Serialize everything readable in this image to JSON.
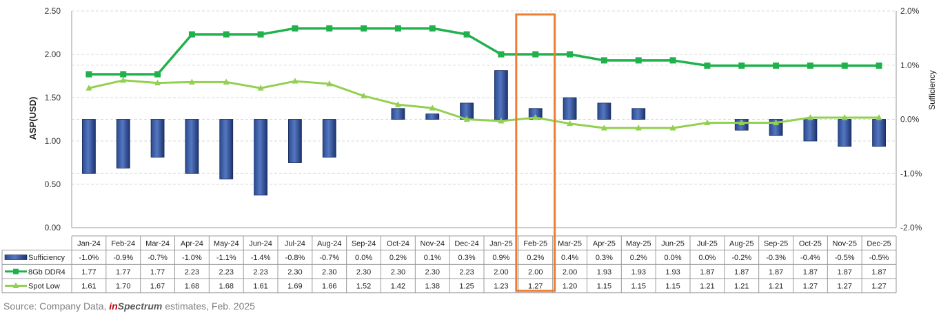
{
  "chart_data": {
    "type": "bar+line",
    "categories": [
      "Jan-24",
      "Feb-24",
      "Mar-24",
      "Apr-24",
      "May-24",
      "Jun-24",
      "Jul-24",
      "Aug-24",
      "Sep-24",
      "Oct-24",
      "Nov-24",
      "Dec-24",
      "Jan-25",
      "Feb-25",
      "Mar-25",
      "Apr-25",
      "May-25",
      "Jun-25",
      "Jul-25",
      "Aug-25",
      "Sep-25",
      "Oct-25",
      "Nov-25",
      "Dec-25"
    ],
    "ylabel": "ASP(USD)",
    "y2label": "Sufficiency",
    "ylim": [
      0,
      2.5
    ],
    "y_ticks": [
      "0.00",
      "0.50",
      "1.00",
      "1.50",
      "2.00",
      "2.50"
    ],
    "y2lim": [
      -2.0,
      2.0
    ],
    "y2_ticks": [
      "-2.0%",
      "-1.0%",
      "0.0%",
      "1.0%",
      "2.0%"
    ],
    "grid": true,
    "highlight_category": "Feb-25",
    "colors": {
      "bar": "#1f3a7a",
      "ddr4": "#1fb14c",
      "spot": "#92d050",
      "highlight": "#ed7d31"
    },
    "series": [
      {
        "name": "Sufficiency",
        "type": "bar",
        "axis": "right",
        "values": [
          -1.0,
          -0.9,
          -0.7,
          -1.0,
          -1.1,
          -1.4,
          -0.8,
          -0.7,
          0.0,
          0.2,
          0.1,
          0.3,
          0.9,
          0.2,
          0.4,
          0.3,
          0.2,
          0.0,
          0.0,
          -0.2,
          -0.3,
          -0.4,
          -0.5,
          -0.5
        ],
        "labels": [
          "-1.0%",
          "-0.9%",
          "-0.7%",
          "-1.0%",
          "-1.1%",
          "-1.4%",
          "-0.8%",
          "-0.7%",
          "0.0%",
          "0.2%",
          "0.1%",
          "0.3%",
          "0.9%",
          "0.2%",
          "0.4%",
          "0.3%",
          "0.2%",
          "0.0%",
          "0.0%",
          "-0.2%",
          "-0.3%",
          "-0.4%",
          "-0.5%",
          "-0.5%"
        ]
      },
      {
        "name": "8Gb DDR4",
        "type": "line",
        "axis": "left",
        "values": [
          1.77,
          1.77,
          1.77,
          2.23,
          2.23,
          2.23,
          2.3,
          2.3,
          2.3,
          2.3,
          2.3,
          2.23,
          2.0,
          2.0,
          2.0,
          1.93,
          1.93,
          1.93,
          1.87,
          1.87,
          1.87,
          1.87,
          1.87,
          1.87
        ],
        "labels": [
          "1.77",
          "1.77",
          "1.77",
          "2.23",
          "2.23",
          "2.23",
          "2.30",
          "2.30",
          "2.30",
          "2.30",
          "2.30",
          "2.23",
          "2.00",
          "2.00",
          "2.00",
          "1.93",
          "1.93",
          "1.93",
          "1.87",
          "1.87",
          "1.87",
          "1.87",
          "1.87",
          "1.87"
        ]
      },
      {
        "name": "Spot Low",
        "type": "line",
        "axis": "left",
        "values": [
          1.61,
          1.7,
          1.67,
          1.68,
          1.68,
          1.61,
          1.69,
          1.66,
          1.52,
          1.42,
          1.38,
          1.25,
          1.23,
          1.27,
          1.2,
          1.15,
          1.15,
          1.15,
          1.21,
          1.21,
          1.21,
          1.27,
          1.27,
          1.27
        ],
        "labels": [
          "1.61",
          "1.70",
          "1.67",
          "1.68",
          "1.68",
          "1.61",
          "1.69",
          "1.66",
          "1.52",
          "1.42",
          "1.38",
          "1.25",
          "1.23",
          "1.27",
          "1.20",
          "1.15",
          "1.15",
          "1.15",
          "1.21",
          "1.21",
          "1.21",
          "1.27",
          "1.27",
          "1.27"
        ]
      }
    ]
  },
  "source": {
    "prefix": "Source: Company Data, ",
    "brand_in": "in",
    "brand_rest": "Spectrum",
    "suffix": " estimates, Feb. 2025"
  }
}
